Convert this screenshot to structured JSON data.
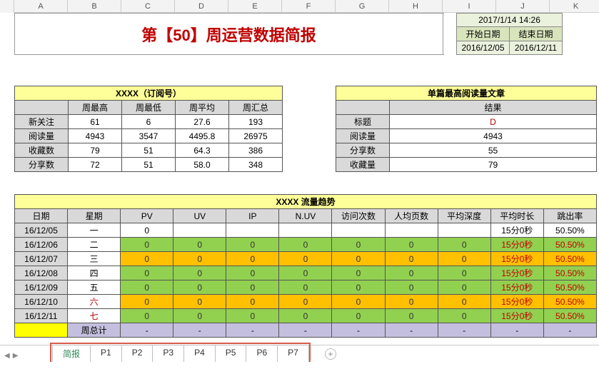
{
  "cols": [
    "",
    "A",
    "B",
    "C",
    "D",
    "E",
    "F",
    "G",
    "H",
    "I",
    "J",
    "K"
  ],
  "title": "第【50】周运营数据简报",
  "datetime": "2017/1/14 14:26",
  "date_labels": {
    "start": "开始日期",
    "end": "结束日期"
  },
  "date_values": {
    "start": "2016/12/05",
    "end": "2016/12/11"
  },
  "sub_table_title": "XXXX（订阅号）",
  "sub_headers": [
    "周最高",
    "周最低",
    "周平均",
    "周汇总"
  ],
  "sub_row_labels": [
    "新关注",
    "阅读量",
    "收藏数",
    "分享数"
  ],
  "sub_rows": [
    [
      "61",
      "6",
      "27.6",
      "193"
    ],
    [
      "4943",
      "3547",
      "4495.8",
      "26975"
    ],
    [
      "79",
      "51",
      "64.3",
      "386"
    ],
    [
      "72",
      "51",
      "58.0",
      "348"
    ]
  ],
  "top_article_title": "单篇最高阅读量文章",
  "top_article_header": "结果",
  "top_article_labels": [
    "标题",
    "阅读量",
    "分享数",
    "收藏量"
  ],
  "top_article_values": [
    "D",
    "4943",
    "55",
    "79"
  ],
  "traffic_title": "XXXX 流量趋势",
  "traffic_headers": [
    "日期",
    "星期",
    "PV",
    "UV",
    "IP",
    "N.UV",
    "访问次数",
    "人均页数",
    "平均深度",
    "平均时长",
    "跳出率"
  ],
  "traffic_dates": [
    "16/12/05",
    "16/12/06",
    "16/12/07",
    "16/12/08",
    "16/12/09",
    "16/12/10",
    "16/12/11"
  ],
  "traffic_weekdays": [
    "一",
    "二",
    "三",
    "四",
    "五",
    "六",
    "七"
  ],
  "traffic_first_row": [
    "0",
    "",
    "",
    "",
    "",
    "",
    "",
    "15分0秒",
    "50.50%"
  ],
  "traffic_cell_value": "0",
  "traffic_time_value": "15分0秒",
  "traffic_bounce_value": "50.50%",
  "traffic_row_highlights": [
    "white",
    "green",
    "orange",
    "green",
    "green",
    "orange",
    "green"
  ],
  "total_label": "周总计",
  "dash": "-",
  "tabs": [
    "简报",
    "P1",
    "P2",
    "P3",
    "P4",
    "P5",
    "P6",
    "P7"
  ],
  "colors": {
    "title_text": "#c00000",
    "yellow_header": "#ffff99",
    "gray_header": "#d9d9d9",
    "green_cell": "#92d050",
    "orange_cell": "#ffc000",
    "lavender": "#c4bfde",
    "yellow_row": "#ffff00",
    "date_box_bg": "#eaf1dd",
    "date_head_bg": "#d8e4bc",
    "tabs_border": "#d85c4a",
    "tab_active": "#2e8b57"
  }
}
